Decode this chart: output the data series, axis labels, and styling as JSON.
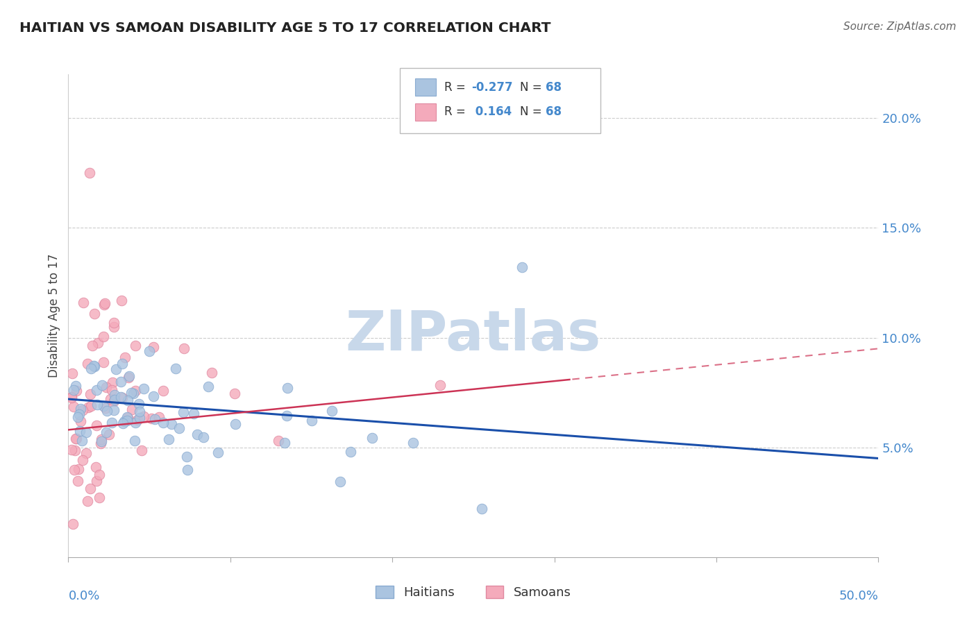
{
  "title": "HAITIAN VS SAMOAN DISABILITY AGE 5 TO 17 CORRELATION CHART",
  "source": "Source: ZipAtlas.com",
  "ylabel": "Disability Age 5 to 17",
  "xlim": [
    0.0,
    0.5
  ],
  "ylim": [
    0.0,
    0.22
  ],
  "blue_color": "#aac4e0",
  "pink_color": "#f4aabb",
  "blue_edge_color": "#88aad0",
  "pink_edge_color": "#e088a0",
  "blue_line_color": "#1a4faa",
  "pink_line_color": "#cc3355",
  "title_color": "#222222",
  "source_color": "#666666",
  "axis_label_color": "#4488cc",
  "watermark_color": "#c8d8ea",
  "grid_color": "#cccccc"
}
